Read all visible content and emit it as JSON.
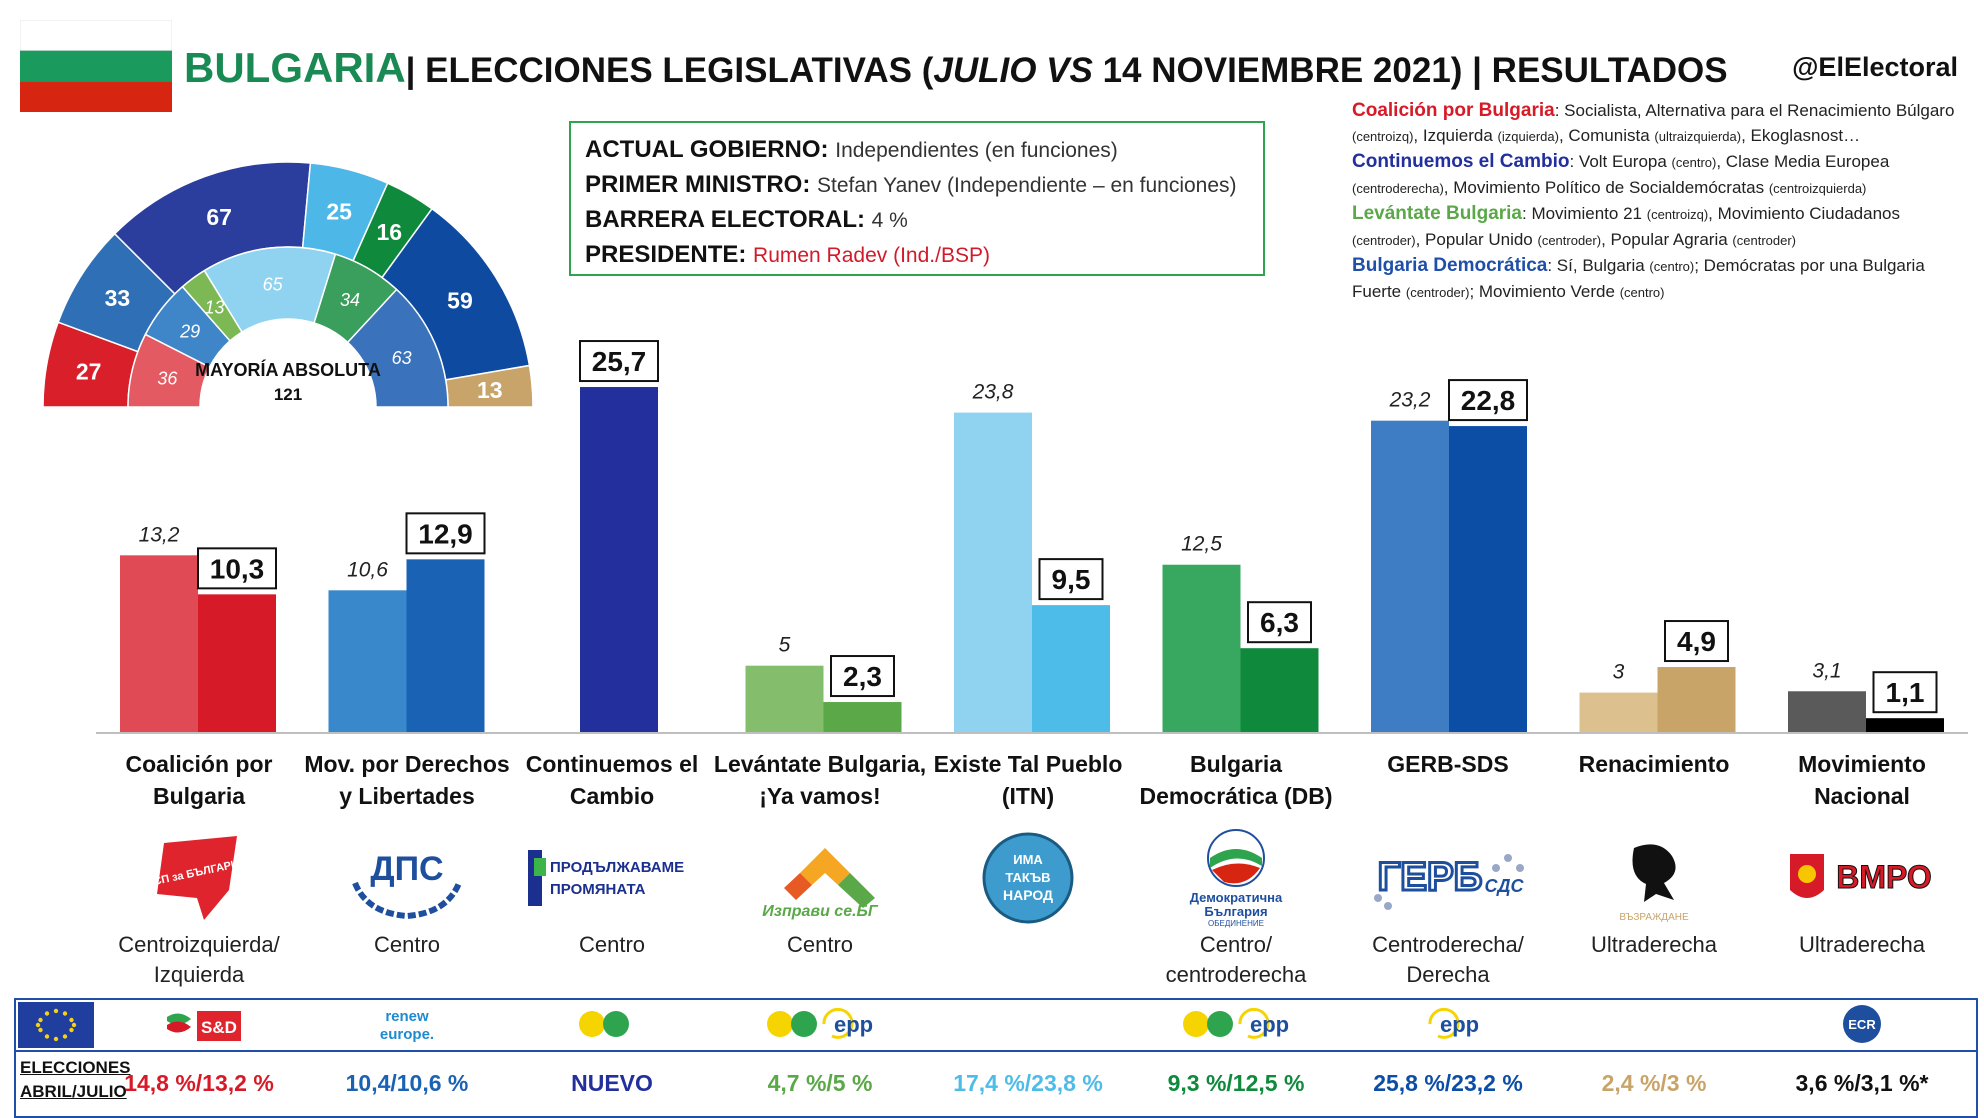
{
  "header": {
    "country": "BULGARIA",
    "title_a": "| ELECCIONES LEGISLATIVAS (",
    "title_julio": "JULIO",
    "title_vs": " VS",
    "title_b": " 14 NOVIEMBRE 2021) | RESULTADOS",
    "handle": "@ElElectoral"
  },
  "flag_colors": [
    "#ffffff",
    "#1a9a5c",
    "#d62612"
  ],
  "government": [
    {
      "key": "ACTUAL GOBIERNO:",
      "value": "Independientes (en funciones)",
      "color": "#333333"
    },
    {
      "key": "PRIMER MINISTRO:",
      "value": "Stefan Yanev (Independiente – en funciones)",
      "color": "#222222"
    },
    {
      "key": "BARRERA ELECTORAL:",
      "value": "4 %",
      "color": "#222222"
    },
    {
      "key": "PRESIDENTE:",
      "value": "Rumen Radev (Ind./BSP)",
      "color": "#d11a2a"
    }
  ],
  "coalitions": {
    "c1_name": "Coalición por Bulgaria",
    "c1_text1": ": Socialista, Alternativa para el Renacimiento Búlgaro ",
    "c1_tag1": "(centroizq)",
    "c1_text2": ", Izquierda ",
    "c1_tag2": "(izquierda)",
    "c1_text3": ", Comunista ",
    "c1_tag3": "(ultraizquierda)",
    "c1_text4": ", Ekoglasnost…",
    "c2_name": "Continuemos el Cambio",
    "c2_text1": ": Volt Europa ",
    "c2_tag1": "(centro)",
    "c2_text2": ", Clase Media Europea ",
    "c2_tag2": "(centroderecha)",
    "c2_text3": ", Movimiento Político de Socialdemócratas ",
    "c2_tag3": "(centroizquierda)",
    "c3_name": "Levántate Bulgaria",
    "c3_text1": ": Movimiento 21 ",
    "c3_tag1": "(centroizq)",
    "c3_text2": ", Movimiento Ciudadanos ",
    "c3_tag2": "(centroder)",
    "c3_text3": ", Popular Unido ",
    "c3_tag3": "(centroder)",
    "c3_text4": ", Popular Agraria ",
    "c3_tag4": "(centroder)",
    "c4_name": "Bulgaria Democrática",
    "c4_text1": ": Sí, Bulgaria ",
    "c4_tag1": "(centro)",
    "c4_text2": "; Demócratas por una Bulgaria Fuerte ",
    "c4_tag2": "(centroder)",
    "c4_text3": "; Movimiento Verde ",
    "c4_tag3": "(centro)"
  },
  "parliament": {
    "majority_label": "MAYORÍA ABSOLUTA",
    "majority_value": "121",
    "outer": [
      {
        "value": 27,
        "color": "#d81f2a"
      },
      {
        "value": 33,
        "color": "#2f6fb6"
      },
      {
        "value": 67,
        "color": "#2b3e9e"
      },
      {
        "value": 25,
        "color": "#4db8e8"
      },
      {
        "value": 16,
        "color": "#0f8a3c"
      },
      {
        "value": 59,
        "color": "#0d4aa0"
      },
      {
        "value": 13,
        "color": "#c9a46a"
      }
    ],
    "inner": [
      {
        "value": 36,
        "color": "#e45a63"
      },
      {
        "value": 29,
        "color": "#3f86c8"
      },
      {
        "value": 13,
        "color": "#7cb955"
      },
      {
        "value": 65,
        "color": "#8fd3f0"
      },
      {
        "value": 34,
        "color": "#3a9e5c"
      },
      {
        "value": 63,
        "color": "#3a72bc"
      }
    ]
  },
  "chart_data": {
    "type": "bar",
    "categories": [
      "Coalición por Bulgaria",
      "Mov. por Derechos y Libertades",
      "Continuemos el Cambio",
      "Levántate Bulgaria, ¡Ya vamos!",
      "Existe Tal Pueblo (ITN)",
      "Bulgaria Democrática (DB)",
      "GERB-SDS",
      "Renacimiento",
      "Movimiento Nacional"
    ],
    "series": [
      {
        "values": [
          13.2,
          10.6,
          null,
          5,
          23.8,
          12.5,
          23.2,
          3,
          3.1
        ],
        "labels": [
          "13,2",
          "10,6",
          "",
          "5",
          "23,8",
          "12,5",
          "23,2",
          "3",
          "3,1"
        ],
        "colors": [
          "#e04a54",
          "#3a88cc",
          "",
          "#84bd6c",
          "#8fd3f0",
          "#38a860",
          "#3e7cc4",
          "#dcc08e",
          "#5a5a5a"
        ]
      },
      {
        "values": [
          10.3,
          12.9,
          25.7,
          2.3,
          9.5,
          6.3,
          22.8,
          4.9,
          1.1
        ],
        "labels": [
          "10,3",
          "12,9",
          "25,7",
          "2,3",
          "9,5",
          "6,3",
          "22,8",
          "4,9",
          "1,1"
        ],
        "colors": [
          "#d71a27",
          "#1a62b4",
          "#222f9c",
          "#5aa848",
          "#4ebce8",
          "#0f8a3c",
          "#0c4ea6",
          "#c9a468",
          "#000000"
        ]
      }
    ],
    "ylim": [
      0,
      26
    ],
    "legend": "none"
  },
  "parties": [
    {
      "name1": "Coalición por",
      "name2": "Bulgaria",
      "ideo1": "Centroizquierda/",
      "ideo2": "Izquierda",
      "prev": "14,8 %/13,2 %",
      "prev_color": "#d71a27",
      "logo": "bsp",
      "eu": "sd"
    },
    {
      "name1": "Mov. por Derechos",
      "name2": "y Libertades",
      "ideo1": "Centro",
      "ideo2": "",
      "prev": "10,4/10,6 %",
      "prev_color": "#1a62b4",
      "logo": "dps",
      "eu": "renew"
    },
    {
      "name1": "Continuemos el",
      "name2": "Cambio",
      "ideo1": "Centro",
      "ideo2": "",
      "prev": "NUEVO",
      "prev_color": "#222f9c",
      "logo": "pp",
      "eu": "greens"
    },
    {
      "name1": "Levántate Bulgaria,",
      "name2": "¡Ya vamos!",
      "ideo1": "Centro",
      "ideo2": "",
      "prev": "4,7 %/5 %",
      "prev_color": "#5aa848",
      "logo": "izpravi",
      "eu": "greens-epp"
    },
    {
      "name1": "Existe Tal Pueblo",
      "name2": "(ITN)",
      "ideo1": "",
      "ideo2": "",
      "prev": "17,4 %/23,8 %",
      "prev_color": "#4ebce8",
      "logo": "itn",
      "eu": ""
    },
    {
      "name1": "Bulgaria",
      "name2": "Democrática (DB)",
      "ideo1": "Centro/",
      "ideo2": "centroderecha",
      "prev": "9,3 %/12,5 %",
      "prev_color": "#0f8a3c",
      "logo": "db",
      "eu": "greens-epp"
    },
    {
      "name1": "GERB-SDS",
      "name2": "",
      "ideo1": "Centroderecha/",
      "ideo2": "Derecha",
      "prev": "25,8 %/23,2 %",
      "prev_color": "#0c4ea6",
      "logo": "gerb",
      "eu": "epp"
    },
    {
      "name1": "Renacimiento",
      "name2": "",
      "ideo1": "Ultraderecha",
      "ideo2": "",
      "prev": "2,4 %/3 %",
      "prev_color": "#c9a468",
      "logo": "vazrazhdane",
      "eu": ""
    },
    {
      "name1": "Movimiento",
      "name2": "Nacional",
      "ideo1": "Ultraderecha",
      "ideo2": "",
      "prev": "3,6 %/3,1 %*",
      "prev_color": "#111111",
      "logo": "vmro",
      "eu": "ecr"
    }
  ],
  "logo_text": {
    "bsp": "БСП за БЪЛГАРИЯ",
    "dps": "ДПС",
    "pp1": "ПРОДЪЛЖАВАМЕ",
    "pp2": "ПРОМЯНАТА",
    "izpravi": "Изправи се.БГ",
    "itn1": "ИМА",
    "itn2": "ТАКЪВ",
    "itn3": "НАРОД",
    "db1": "Демократична",
    "db2": "България",
    "db3": "ОБЕДИНЕНИЕ",
    "gerb": "ГЕРБ",
    "sds": "СДС",
    "vazrazhdane": "ВЪЗРАЖДАНЕ",
    "vmro": "ВМРО"
  },
  "eu_labels": {
    "sd": "S&D",
    "renew1": "renew",
    "renew2": "europe.",
    "epp": "epp",
    "ecr": "ECR"
  },
  "bottom": {
    "prev_label1": "ELECCIONES",
    "prev_label2": "ABRIL/JULIO"
  }
}
